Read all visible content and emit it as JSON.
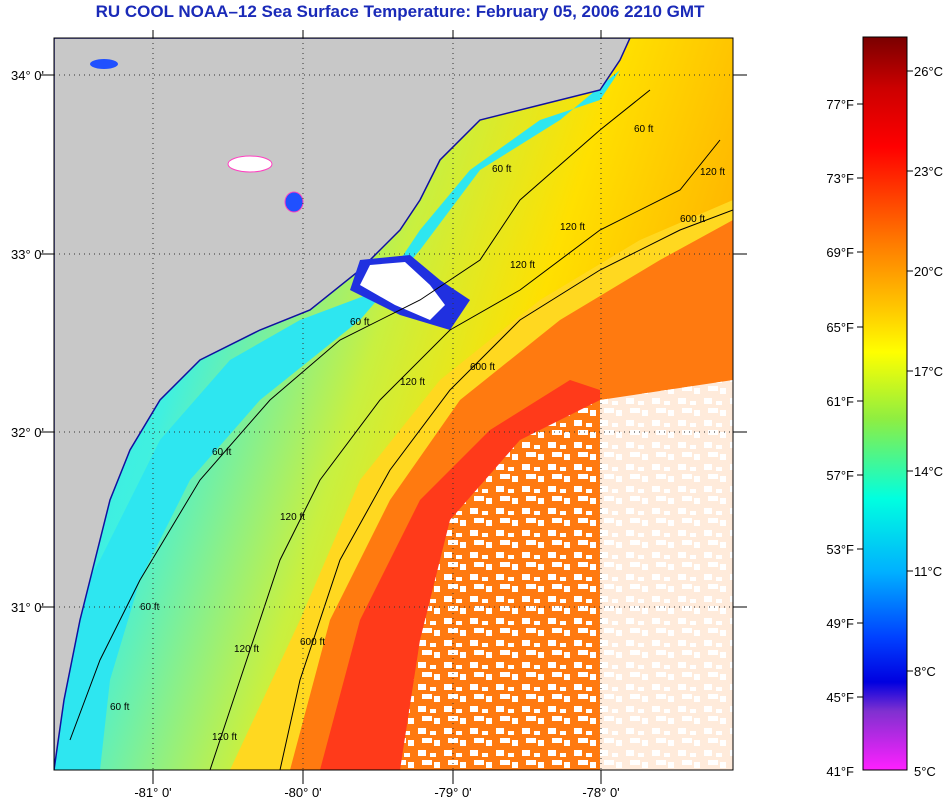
{
  "title": "RU COOL  NOAA–12  Sea Surface Temperature:  February 05, 2006 2210 GMT",
  "map": {
    "lat_labels": [
      "34° 0'",
      "33° 0'",
      "32° 0'",
      "31° 0'"
    ],
    "lon_labels": [
      "-81° 0'",
      "-80° 0'",
      "-79° 0'",
      "-78° 0'"
    ],
    "contour_labels": [
      "60 ft",
      "60 ft",
      "60 ft",
      "60 ft",
      "120 ft",
      "120 ft",
      "120 ft",
      "120 ft",
      "120 ft",
      "120 ft",
      "120 ft",
      "600 ft",
      "600 ft",
      "600 ft",
      "60 ft",
      "60 ft"
    ],
    "colors": {
      "land": "#c8c8c8",
      "cloud": "#ffffff",
      "gulf_stream": "#ff3a1a",
      "nearshore": "#2ee6f0",
      "shelf": "#e6ee20"
    }
  },
  "colorbar": {
    "f_labels": [
      "77°F",
      "73°F",
      "69°F",
      "65°F",
      "61°F",
      "57°F",
      "53°F",
      "49°F",
      "45°F",
      "41°F"
    ],
    "c_labels": [
      "26°C",
      "23°C",
      "20°C",
      "17°C",
      "14°C",
      "11°C",
      "8°C",
      "5°C"
    ]
  }
}
